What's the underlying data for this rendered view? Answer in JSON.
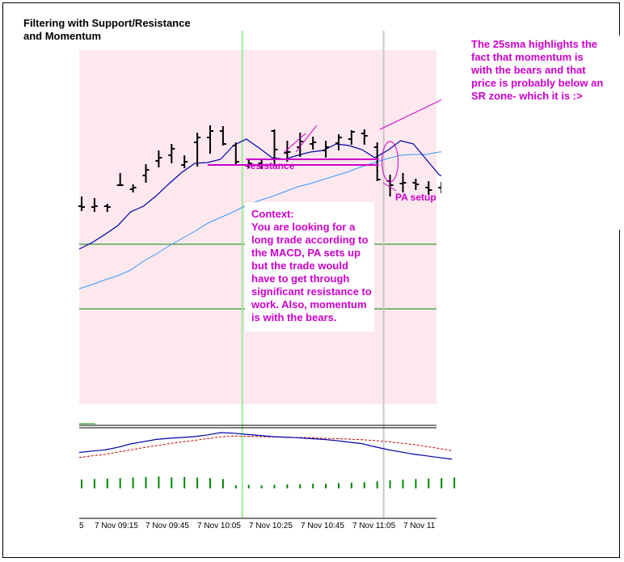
{
  "title_line1": "Filtering with Support/Resistance",
  "title_line2": "and Momentum",
  "annotations": {
    "top_note_lines": [
      "The 25sma highlights the",
      "fact that momentum is",
      "with the bears and that",
      "price is probably below an",
      "SR zone- which it is :>"
    ],
    "context_heading": "Context:",
    "context_lines": [
      "You are looking for a",
      "long trade according to",
      "the MACD, PA sets up",
      "but the trade would",
      "have to get through",
      "significant resistance to",
      "work. Also, momentum",
      "is with the bears."
    ],
    "resistance_label": "resistance",
    "pa_label": "PA setup"
  },
  "colors": {
    "annotation": "#cc00cc",
    "background_band": "#fde8ee",
    "fast_ma": "#0000aa",
    "slow_ma": "#3399ff",
    "horizontal_line": "#008800",
    "vertical_line": "#99ee99",
    "vertical_line_grey": "#c8c8c8",
    "macd_signal": "#cc0000",
    "macd_hist": "#008800"
  },
  "chart_data": {
    "type": "ohlc",
    "x_tick_labels": [
      "5",
      "7 Nov 09:15",
      "7 Nov 09:45",
      "7 Nov 10:05",
      "7 Nov 10:25",
      "7 Nov 10:45",
      "7 Nov 11:05",
      "7 Nov 11"
    ],
    "bars": [
      {
        "o": 47.0,
        "h": 59.0,
        "l": 41.0,
        "c": 46.0
      },
      {
        "o": 46.0,
        "h": 57.0,
        "l": 40.0,
        "c": 47.0
      },
      {
        "o": 47.0,
        "h": 50.0,
        "l": 40.0,
        "c": 46.0
      },
      {
        "o": 73.0,
        "h": 88.0,
        "l": 72.0,
        "c": 73.0
      },
      {
        "o": 68.0,
        "h": 74.0,
        "l": 64.0,
        "c": 70.0
      },
      {
        "o": 85.0,
        "h": 99.0,
        "l": 76.0,
        "c": 92.0
      },
      {
        "o": 103.0,
        "h": 116.0,
        "l": 95.0,
        "c": 107.0
      },
      {
        "o": 110.0,
        "h": 124.0,
        "l": 100.0,
        "c": 118.0
      },
      {
        "o": 98.0,
        "h": 110.0,
        "l": 94.0,
        "c": 102.0
      },
      {
        "o": 126.0,
        "h": 138.0,
        "l": 96.0,
        "c": 132.0
      },
      {
        "o": 132.0,
        "h": 147.0,
        "l": 112.0,
        "c": 140.0
      },
      {
        "o": 140.0,
        "h": 146.0,
        "l": 122.0,
        "c": 124.0
      },
      {
        "o": 122.0,
        "h": 126.0,
        "l": 99.0,
        "c": 102.0
      },
      {
        "o": 97.0,
        "h": 104.0,
        "l": 94.0,
        "c": 100.0
      },
      {
        "o": 100.0,
        "h": 104.0,
        "l": 93.0,
        "c": 98.0
      },
      {
        "o": 140.0,
        "h": 142.0,
        "l": 98.0,
        "c": 117.0
      },
      {
        "o": 113.0,
        "h": 128.0,
        "l": 102.0,
        "c": 114.0
      },
      {
        "o": 120.0,
        "h": 138.0,
        "l": 108.0,
        "c": 127.0
      },
      {
        "o": 124.0,
        "h": 133.0,
        "l": 117.0,
        "c": 126.0
      },
      {
        "o": 116.0,
        "h": 128.0,
        "l": 107.0,
        "c": 120.0
      },
      {
        "o": 125.0,
        "h": 136.0,
        "l": 116.0,
        "c": 132.0
      },
      {
        "o": 130.0,
        "h": 141.0,
        "l": 123.0,
        "c": 139.0
      },
      {
        "o": 137.0,
        "h": 142.0,
        "l": 123.0,
        "c": 134.0
      },
      {
        "o": 120.0,
        "h": 126.0,
        "l": 78.0,
        "c": 80.0
      },
      {
        "o": 78.0,
        "h": 86.0,
        "l": 59.0,
        "c": 73.0
      },
      {
        "o": 75.0,
        "h": 88.0,
        "l": 64.0,
        "c": 76.0
      },
      {
        "o": 76.0,
        "h": 81.0,
        "l": 67.0,
        "c": 74.0
      },
      {
        "o": 70.0,
        "h": 78.0,
        "l": 61.0,
        "c": 67.0
      },
      {
        "o": 70.0,
        "h": 77.0,
        "l": 63.0,
        "c": 70.0
      },
      {
        "o": 73.0,
        "h": 85.0,
        "l": 64.0,
        "c": 76.0
      }
    ],
    "fast_ma": [
      -6,
      2,
      12,
      23,
      40,
      47,
      60,
      75,
      89,
      100,
      101,
      105,
      122,
      130,
      119,
      107,
      105,
      110,
      114,
      116,
      124,
      122,
      117,
      107,
      116,
      128,
      124,
      105,
      86,
      78,
      76
    ],
    "slow_ma": [
      -55,
      -50,
      -44,
      -39,
      -32,
      -21,
      -12,
      -2,
      7,
      16,
      26,
      33,
      40,
      48,
      54,
      59,
      65,
      71,
      75,
      80,
      85,
      90,
      96,
      101,
      106,
      110,
      111,
      111,
      114,
      115,
      114
    ],
    "resistance_lines": [
      {
        "from_bar": 12,
        "to_bar": 23,
        "price": 98
      },
      {
        "from_bar": 15,
        "to_bar": 23,
        "price": 105
      }
    ],
    "horizontal_levels": [
      0,
      -80
    ],
    "vertical_marker_bars": [
      12.5,
      23.5
    ],
    "pa_setup_bar": 24,
    "macd_main": [
      0.3,
      0.35,
      0.39,
      0.48,
      0.6,
      0.68,
      0.76,
      0.8,
      0.83,
      0.86,
      0.92,
      1.0,
      0.98,
      0.94,
      0.9,
      0.86,
      0.84,
      0.82,
      0.79,
      0.76,
      0.72,
      0.66,
      0.61,
      0.5,
      0.4,
      0.32,
      0.24,
      0.18,
      0.12,
      0.06
    ],
    "macd_signal": [
      0.12,
      0.18,
      0.23,
      0.31,
      0.39,
      0.47,
      0.54,
      0.61,
      0.67,
      0.73,
      0.79,
      0.85,
      0.88,
      0.87,
      0.86,
      0.85,
      0.84,
      0.83,
      0.82,
      0.8,
      0.79,
      0.77,
      0.75,
      0.72,
      0.68,
      0.63,
      0.58,
      0.51,
      0.44,
      0.36
    ],
    "macd_hist": [
      0.36,
      0.38,
      0.4,
      0.42,
      0.45,
      0.47,
      0.49,
      0.45,
      0.47,
      0.44,
      0.42,
      0.38,
      0.1,
      0.12,
      0.1,
      0.12,
      0.14,
      0.15,
      0.17,
      0.17,
      0.2,
      0.22,
      0.24,
      0.28,
      0.32,
      0.35,
      0.38,
      0.4,
      0.42,
      0.45
    ]
  }
}
